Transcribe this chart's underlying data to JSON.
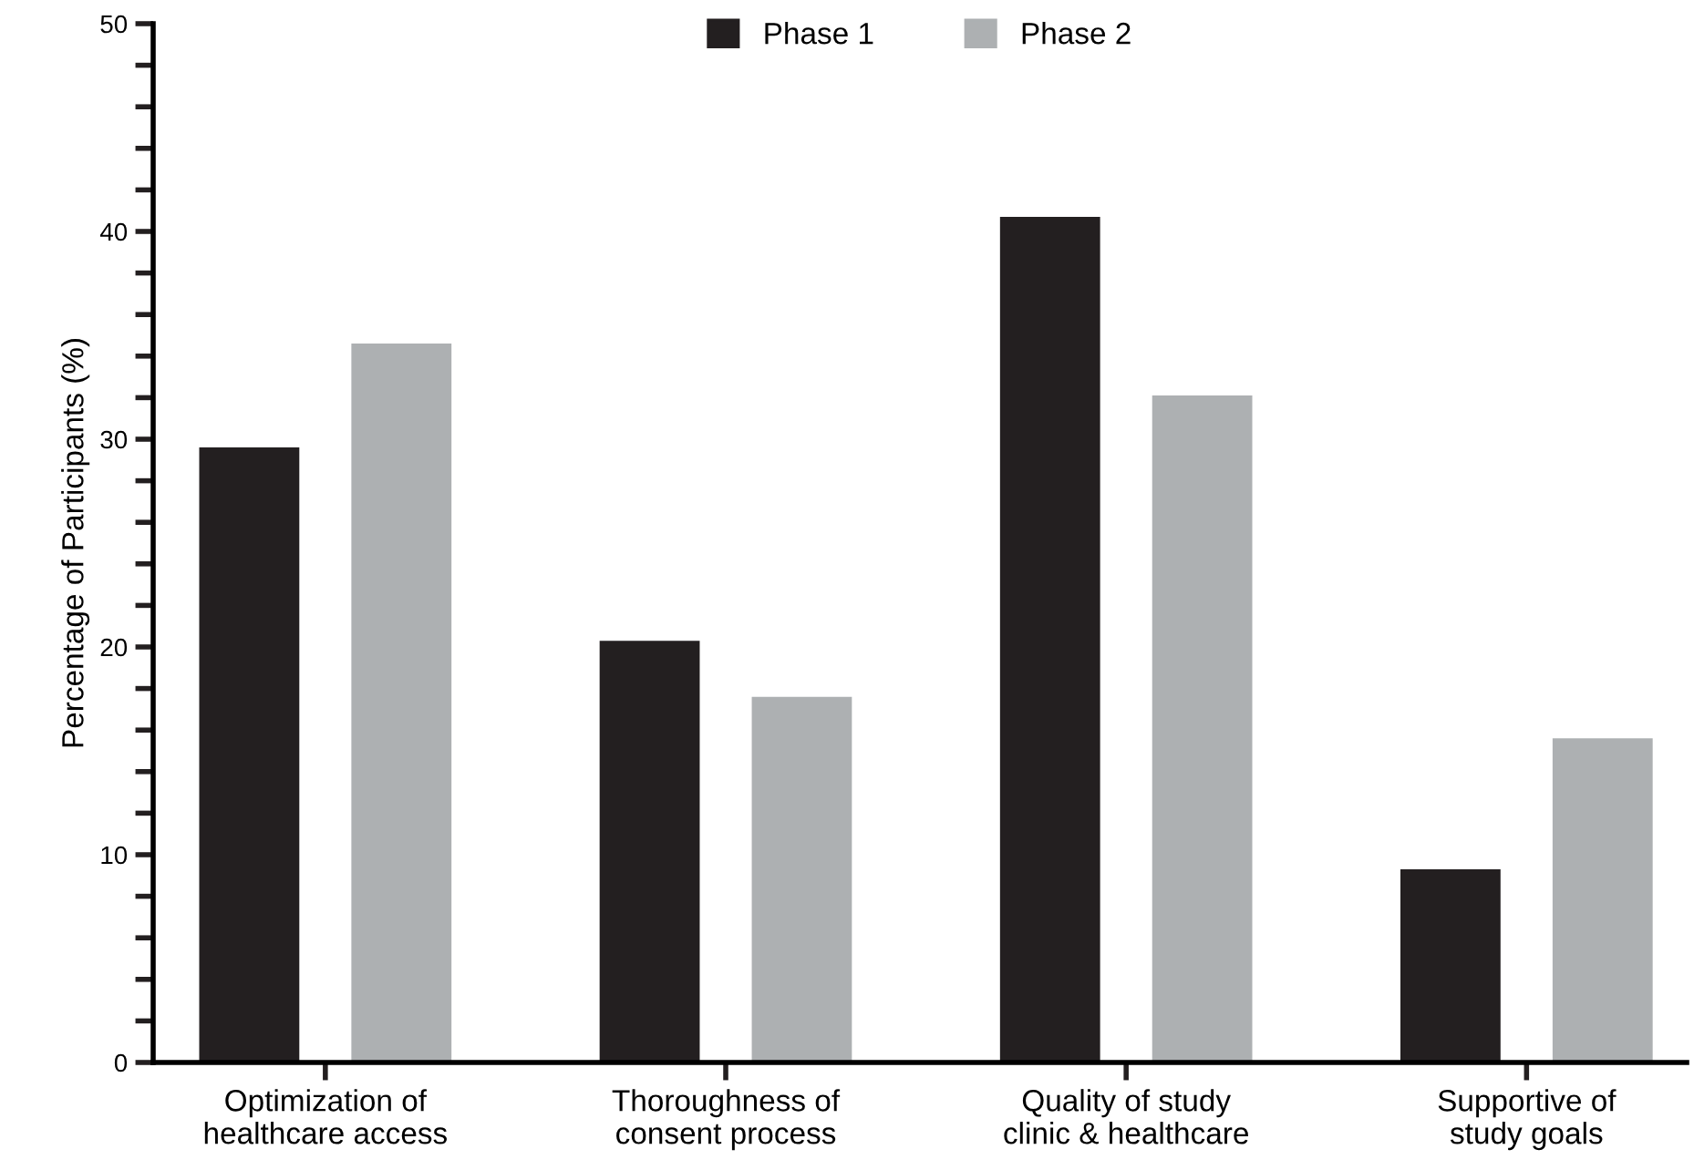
{
  "chart_data": {
    "type": "bar",
    "ylabel": "Percentage of Participants (%)",
    "categories": [
      "Optimization of\nhealthcare access",
      "Thoroughness of\nconsent process",
      "Quality of study\nclinic & healthcare",
      "Supportive of\nstudy goals"
    ],
    "series": [
      {
        "name": "Phase 1",
        "color": "#231f20",
        "values": [
          29.6,
          20.3,
          40.7,
          9.3
        ]
      },
      {
        "name": "Phase 2",
        "color": "#adb0b2",
        "values": [
          34.6,
          17.6,
          32.1,
          15.6
        ]
      }
    ],
    "ylim": [
      0,
      50
    ],
    "yticks": [
      0,
      {
        "value": 2,
        "label": null
      },
      {
        "value": 4,
        "label": null
      },
      {
        "value": 6,
        "label": null
      },
      {
        "value": 8,
        "label": null
      },
      10,
      {
        "value": 12,
        "label": null
      },
      {
        "value": 14,
        "label": null
      },
      {
        "value": 16,
        "label": null
      },
      {
        "value": 18,
        "label": null
      },
      20,
      {
        "value": 22,
        "label": null
      },
      {
        "value": 24,
        "label": null
      },
      {
        "value": 26,
        "label": null
      },
      {
        "value": 28,
        "label": null
      },
      30,
      {
        "value": 32,
        "label": null
      },
      {
        "value": 34,
        "label": null
      },
      {
        "value": 36,
        "label": null
      },
      {
        "value": 38,
        "label": null
      },
      40,
      {
        "value": 42,
        "label": null
      },
      {
        "value": 44,
        "label": null
      },
      {
        "value": 46,
        "label": null
      },
      {
        "value": 48,
        "label": null
      },
      50
    ],
    "grid": false,
    "legend": "top"
  }
}
